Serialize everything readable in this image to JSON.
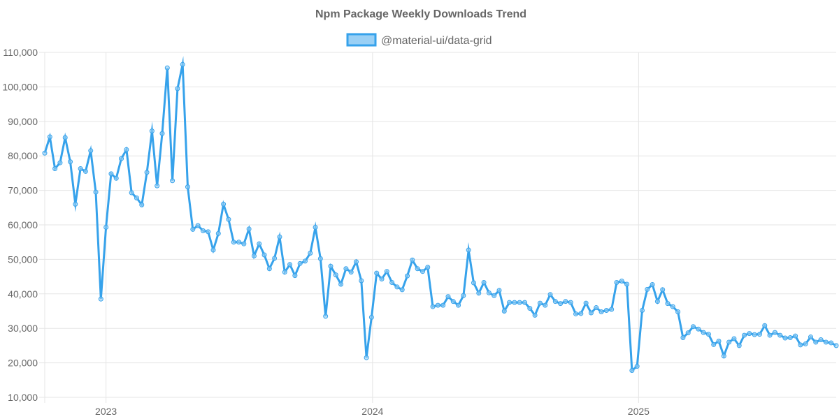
{
  "chart_data": {
    "type": "line",
    "title": "Npm Package Weekly Downloads Trend",
    "xlabel": "",
    "ylabel": "",
    "ylim": [
      10000,
      110000
    ],
    "y_ticks": [
      "10,000",
      "20,000",
      "30,000",
      "40,000",
      "50,000",
      "60,000",
      "70,000",
      "80,000",
      "90,000",
      "100,000",
      "110,000"
    ],
    "x_ticks": [
      {
        "label": "2023",
        "index": 12
      },
      {
        "label": "2024",
        "index": 64.2
      },
      {
        "label": "2025",
        "index": 116.3
      }
    ],
    "grid": true,
    "legend_position": "top-center",
    "x_interval": "weekly",
    "series": [
      {
        "name": "@material-ui/data-grid",
        "color": "#36a2eb",
        "fill": "#9ad0f5",
        "values": [
          80800,
          85500,
          76300,
          78000,
          85300,
          78300,
          66000,
          76300,
          75500,
          81500,
          69500,
          38500,
          59300,
          74800,
          73500,
          79200,
          81800,
          69300,
          67800,
          65800,
          75200,
          87200,
          71300,
          86500,
          105500,
          72800,
          99500,
          106500,
          71000,
          58700,
          59800,
          58300,
          58000,
          52700,
          57500,
          66000,
          61600,
          55000,
          55000,
          54500,
          58800,
          51000,
          54500,
          51300,
          47300,
          50300,
          56500,
          46300,
          48500,
          45300,
          48800,
          49500,
          51800,
          59300,
          50200,
          33500,
          48000,
          45500,
          42800,
          47300,
          46300,
          49300,
          43800,
          21500,
          33200,
          46000,
          44300,
          46500,
          43300,
          42000,
          41200,
          45200,
          49800,
          47300,
          46500,
          47700,
          36300,
          36700,
          36700,
          39200,
          37800,
          36700,
          39500,
          52700,
          43200,
          40200,
          43300,
          40300,
          39500,
          41000,
          35000,
          37500,
          37500,
          37500,
          37500,
          35800,
          33800,
          37300,
          36700,
          39800,
          37800,
          37200,
          37800,
          37500,
          34200,
          34300,
          37300,
          34500,
          36000,
          34800,
          35200,
          35500,
          43300,
          43700,
          42800,
          17800,
          19000,
          35200,
          41300,
          42700,
          37800,
          41200,
          37200,
          36300,
          34800,
          27300,
          28700,
          30500,
          29800,
          28800,
          28300,
          25300,
          26300,
          22000,
          26000,
          27000,
          25000,
          28000,
          28500,
          28200,
          28300,
          30800,
          28000,
          28800,
          28000,
          27200,
          27300,
          27800,
          25200,
          25500,
          27500,
          26000,
          26700,
          26000,
          25800,
          25000
        ]
      }
    ]
  }
}
